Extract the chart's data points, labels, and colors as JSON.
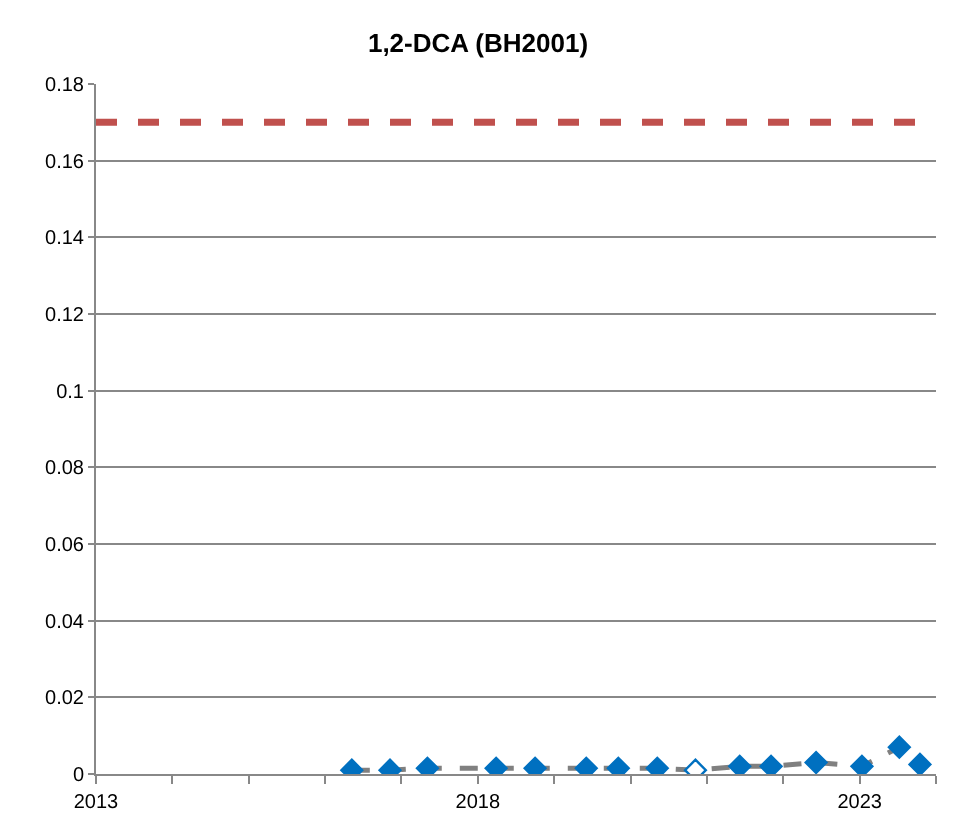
{
  "chart_data": {
    "type": "line",
    "title": "1,2-DCA (BH2001)",
    "x": [
      2016.35,
      2016.85,
      2017.34,
      2018.24,
      2018.75,
      2019.42,
      2019.84,
      2020.35,
      2020.85,
      2021.43,
      2021.84,
      2022.43,
      2023.03,
      2023.52,
      2023.79
    ],
    "series": [
      {
        "color": "#808080",
        "colors": [
          "#0070c0",
          "#0070c0",
          "#0070c0",
          "#0070c0",
          "#0070c0",
          "#0070c0",
          "#0070c0",
          "#0070c0",
          "#ffffff",
          "#0070c0",
          "#0070c0",
          "#0070c0",
          "#0070c0",
          "#0070c0",
          "#0070c0"
        ],
        "values": [
          0.001,
          0.001,
          0.0015,
          0.0015,
          0.0015,
          0.0015,
          0.0015,
          0.0015,
          0.001,
          0.002,
          0.002,
          0.003,
          0.002,
          0.007,
          0.0025
        ]
      }
    ],
    "xlim": [
      2013,
      2024
    ],
    "xticks": [
      2013,
      {
        "value": 2014,
        "label": null
      },
      {
        "value": 2015,
        "label": null
      },
      {
        "value": 2016,
        "label": null
      },
      {
        "value": 2017,
        "label": null
      },
      2018,
      {
        "value": 2019,
        "label": null
      },
      {
        "value": 2020,
        "label": null
      },
      {
        "value": 2021,
        "label": null
      },
      {
        "value": 2022,
        "label": null
      },
      2023,
      {
        "value": 2024,
        "label": null
      }
    ],
    "ylim": [
      0,
      0.18
    ],
    "yticks": [
      0,
      0.02,
      0.04,
      0.06,
      0.08,
      0.1,
      0.12,
      0.14,
      0.16,
      0.18
    ],
    "ref_lines": [
      {
        "axis": "y",
        "value": 0.17,
        "color": "#c0504d",
        "line_style": "dashed"
      }
    ],
    "grid": "y",
    "marker": "diamond",
    "line_style": "dashed"
  }
}
